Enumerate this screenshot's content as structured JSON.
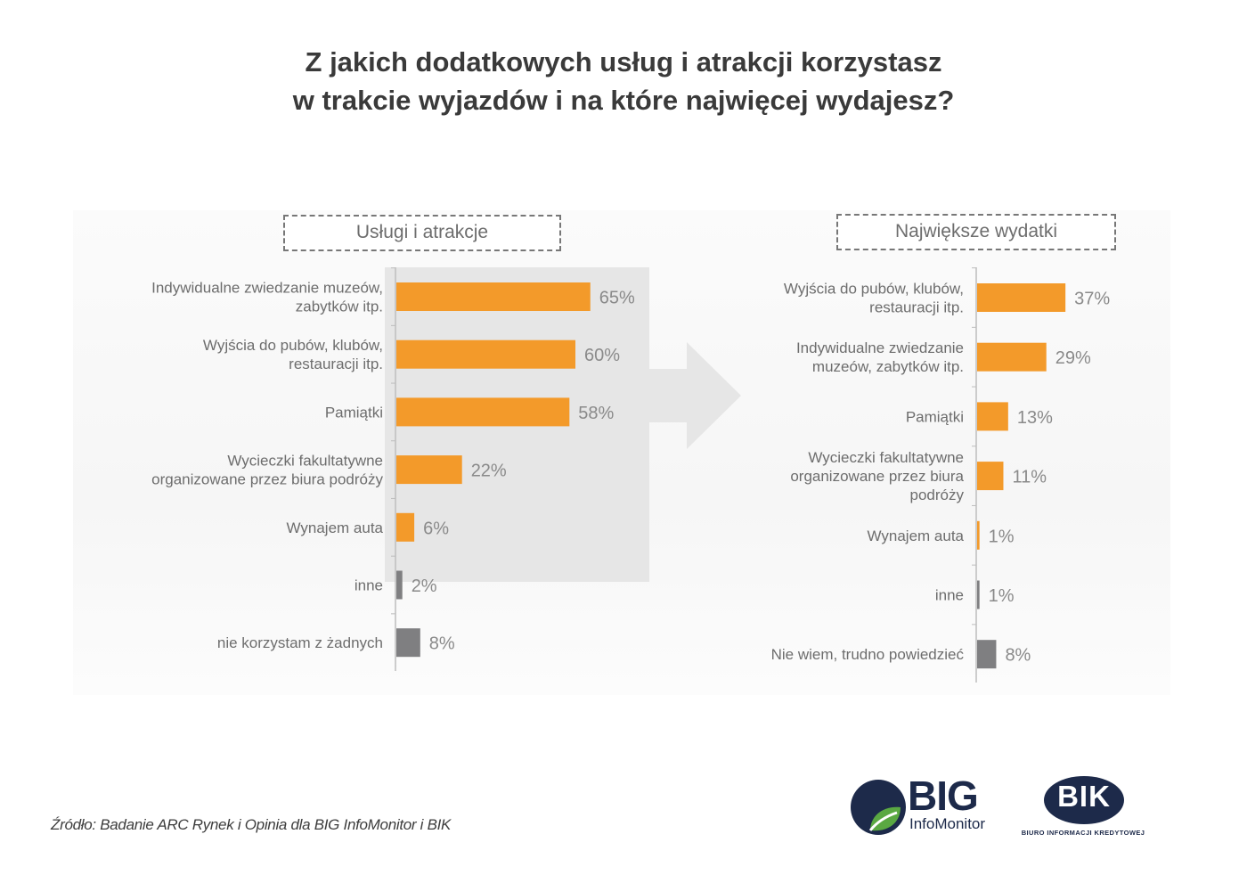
{
  "title": {
    "line1": "Z jakich dodatkowych usług i atrakcji korzystasz",
    "line2": "w trakcie wyjazdów i na które najwięcej wydajesz?"
  },
  "colors": {
    "highlight": "#f39a2a",
    "other": "#7f7f81",
    "shade": "#e6e6e6"
  },
  "chart_data": [
    {
      "type": "bar",
      "orientation": "horizontal",
      "title": "Usługi i atrakcje",
      "unit": "%",
      "categories": [
        [
          "Indywidualne zwiedzanie muzeów,",
          "zabytków itp."
        ],
        [
          "Wyjścia do pubów, klubów,",
          "restauracji itp."
        ],
        [
          "Pamiątki"
        ],
        [
          "Wycieczki fakultatywne",
          "organizowane przez biura podróży"
        ],
        [
          "Wynajem auta"
        ],
        [
          "inne"
        ],
        [
          "nie korzystam z żadnych"
        ]
      ],
      "values": [
        65,
        60,
        58,
        22,
        6,
        2,
        8
      ],
      "labels": [
        "65%",
        "60%",
        "58%",
        "22%",
        "6%",
        "2%",
        "8%"
      ],
      "highlighted": [
        true,
        true,
        true,
        true,
        true,
        false,
        false
      ]
    },
    {
      "type": "bar",
      "orientation": "horizontal",
      "title": "Największe wydatki",
      "unit": "%",
      "categories": [
        [
          "Wyjścia do pubów, klubów,",
          "restauracji itp."
        ],
        [
          "Indywidualne zwiedzanie",
          "muzeów, zabytków itp."
        ],
        [
          "Pamiątki"
        ],
        [
          "Wycieczki fakultatywne",
          "organizowane przez biura",
          "podróży"
        ],
        [
          "Wynajem auta"
        ],
        [
          "inne"
        ],
        [
          "Nie wiem, trudno powiedzieć"
        ]
      ],
      "values": [
        37,
        29,
        13,
        11,
        1,
        1,
        8
      ],
      "labels": [
        "37%",
        "29%",
        "13%",
        "11%",
        "1%",
        "1%",
        "8%"
      ],
      "highlighted": [
        true,
        true,
        true,
        true,
        true,
        false,
        false
      ]
    }
  ],
  "source": "Źródło: Badanie ARC Rynek i Opinia dla BIG InfoMonitor i BIK",
  "logos": {
    "big_word": "BIG",
    "big_sub": "InfoMonitor",
    "bik_word": "BIK",
    "bik_sub": "BIURO INFORMACJI KREDYTOWEJ"
  }
}
